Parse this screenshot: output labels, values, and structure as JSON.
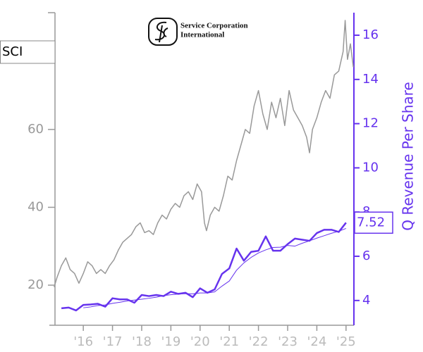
{
  "chart_data": {
    "type": "line",
    "ticker": "SCI",
    "logo_lines": [
      "Service Corporation",
      "International"
    ],
    "y2_label": "Q Revenue Per Share",
    "xlim": [
      2015.03,
      2025.27
    ],
    "xticks": [
      {
        "value": 2016,
        "label": "'16"
      },
      {
        "value": 2017,
        "label": "'17"
      },
      {
        "value": 2018,
        "label": "'18"
      },
      {
        "value": 2019,
        "label": "'19"
      },
      {
        "value": 2020,
        "label": "'20"
      },
      {
        "value": 2021,
        "label": "'21"
      },
      {
        "value": 2022,
        "label": "'22"
      },
      {
        "value": 2023,
        "label": "'23"
      },
      {
        "value": 2024,
        "label": "'24"
      },
      {
        "value": 2025,
        "label": "'25"
      }
    ],
    "ylim": [
      9.7,
      90
    ],
    "yticks": [
      20,
      40,
      60
    ],
    "y2lim": [
      2.88,
      17.02
    ],
    "y2ticks": [
      4,
      6,
      8,
      10,
      12,
      14,
      16
    ],
    "series": [
      {
        "color": "#6633ee",
        "axis": "y2",
        "width": 2.5,
        "value_label_index": 39,
        "x": [
          2015.25,
          2015.5,
          2015.75,
          2016,
          2016.25,
          2016.5,
          2016.75,
          2017,
          2017.25,
          2017.5,
          2017.75,
          2018,
          2018.25,
          2018.5,
          2018.75,
          2019,
          2019.25,
          2019.5,
          2019.75,
          2020,
          2020.25,
          2020.5,
          2020.75,
          2021,
          2021.25,
          2021.5,
          2021.75,
          2022,
          2022.25,
          2022.5,
          2022.75,
          2023,
          2023.25,
          2023.5,
          2023.75,
          2024,
          2024.25,
          2024.5,
          2024.75,
          2025
        ],
        "values": [
          3.65,
          3.68,
          3.55,
          3.8,
          3.82,
          3.85,
          3.72,
          4.1,
          4.05,
          4.05,
          3.9,
          4.25,
          4.2,
          4.25,
          4.2,
          4.4,
          4.3,
          4.35,
          4.15,
          4.55,
          4.35,
          4.5,
          5.2,
          5.45,
          6.35,
          5.8,
          6.2,
          6.25,
          6.9,
          6.25,
          6.25,
          6.55,
          6.8,
          6.75,
          6.7,
          7.05,
          7.2,
          7.2,
          7.1,
          7.52
        ]
      },
      {
        "color": "#6633ee",
        "axis": "y2",
        "width": 1,
        "x": [
          2015.25,
          2015.5,
          2015.75,
          2016,
          2016.25,
          2016.5,
          2016.75,
          2017,
          2017.25,
          2017.5,
          2017.75,
          2018,
          2018.25,
          2018.5,
          2018.75,
          2019,
          2019.25,
          2019.5,
          2019.75,
          2020,
          2020.25,
          2020.5,
          2020.75,
          2021,
          2021.25,
          2021.5,
          2021.75,
          2022,
          2022.25,
          2022.5,
          2022.75,
          2023,
          2023.25,
          2023.5,
          2023.75,
          2024,
          2024.25,
          2024.5,
          2024.75,
          2025
        ],
        "values": [
          null,
          null,
          null,
          3.67,
          3.71,
          3.77,
          3.8,
          3.87,
          3.92,
          3.98,
          4.02,
          4.06,
          4.1,
          4.15,
          4.22,
          4.26,
          4.29,
          4.31,
          4.3,
          4.34,
          4.34,
          4.39,
          4.65,
          4.88,
          5.37,
          5.7,
          5.95,
          6.15,
          6.29,
          6.4,
          6.41,
          6.49,
          6.46,
          6.59,
          6.7,
          6.82,
          6.93,
          7.04,
          7.13,
          7.26
        ]
      },
      {
        "color": "#999999",
        "axis": "y",
        "width": 1.5,
        "x": [
          2015.0,
          2015.1,
          2015.25,
          2015.4,
          2015.55,
          2015.7,
          2015.85,
          2016.0,
          2016.15,
          2016.3,
          2016.45,
          2016.6,
          2016.75,
          2016.9,
          2017.05,
          2017.2,
          2017.35,
          2017.5,
          2017.65,
          2017.8,
          2017.95,
          2018.1,
          2018.25,
          2018.4,
          2018.55,
          2018.7,
          2018.85,
          2019.0,
          2019.15,
          2019.3,
          2019.45,
          2019.6,
          2019.75,
          2019.9,
          2020.05,
          2020.15,
          2020.22,
          2020.35,
          2020.5,
          2020.65,
          2020.8,
          2020.95,
          2021.1,
          2021.25,
          2021.4,
          2021.55,
          2021.7,
          2021.85,
          2022.0,
          2022.15,
          2022.3,
          2022.45,
          2022.6,
          2022.75,
          2022.9,
          2023.05,
          2023.2,
          2023.35,
          2023.5,
          2023.65,
          2023.75,
          2023.85,
          2024.0,
          2024.15,
          2024.3,
          2024.45,
          2024.6,
          2024.75,
          2024.9,
          2024.97,
          2025.05,
          2025.15,
          2025.25
        ],
        "values": [
          19.5,
          22,
          25,
          27,
          24,
          23,
          20.5,
          23,
          26,
          25,
          23,
          24,
          23,
          25,
          26.5,
          29,
          31,
          32,
          33,
          35,
          36,
          33.5,
          34,
          33,
          36,
          38,
          37,
          39.5,
          41,
          40,
          43,
          44,
          42,
          46,
          44,
          36,
          34,
          38,
          40,
          39,
          43,
          48,
          47,
          52,
          56,
          60,
          59,
          66,
          70,
          64,
          60,
          67,
          63,
          68,
          61,
          70,
          65,
          63,
          61,
          58,
          54,
          60,
          63,
          67,
          70,
          68,
          74,
          75,
          80,
          88,
          78,
          82,
          76
        ]
      }
    ]
  }
}
